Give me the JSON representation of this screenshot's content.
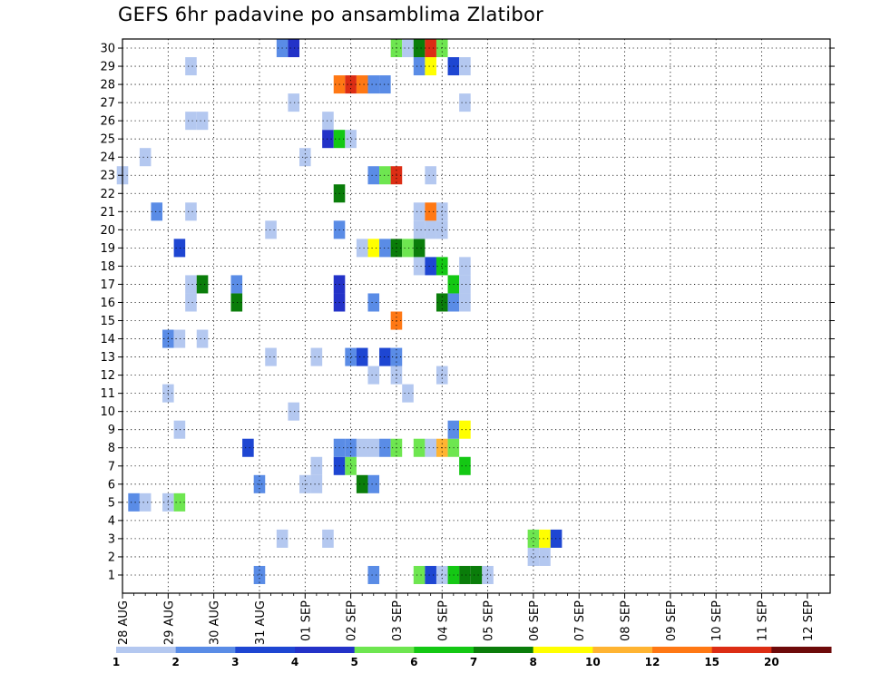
{
  "chart_data": {
    "type": "heatmap",
    "title": "GEFS 6hr padavine po ansamblima Zlatibor",
    "xlabel": "",
    "ylabel": "",
    "x_tick_labels": [
      "28 AUG",
      "29 AUG",
      "30 AUG",
      "31 AUG",
      "01 SEP",
      "02 SEP",
      "03 SEP",
      "04 SEP",
      "05 SEP",
      "06 SEP",
      "07 SEP",
      "08 SEP",
      "09 SEP",
      "10 SEP",
      "11 SEP",
      "12 SEP"
    ],
    "x_unit": "6-hour step",
    "y_tick_labels": [
      "1",
      "2",
      "3",
      "4",
      "5",
      "6",
      "7",
      "8",
      "9",
      "10",
      "11",
      "12",
      "13",
      "14",
      "15",
      "16",
      "17",
      "18",
      "19",
      "20",
      "21",
      "22",
      "23",
      "24",
      "25",
      "26",
      "27",
      "28",
      "29",
      "30"
    ],
    "ylim": [
      1,
      30
    ],
    "grid": true,
    "colorbar": {
      "labels": [
        "1",
        "2",
        "3",
        "4",
        "5",
        "6",
        "7",
        "8",
        "10",
        "12",
        "15",
        "20"
      ],
      "colors": [
        "#b4c8f0",
        "#5a8ce6",
        "#1e46d2",
        "#2332c8",
        "#6ee650",
        "#14c814",
        "#0a7d0a",
        "#ffff00",
        "#ffb432",
        "#ff7814",
        "#dc2d14",
        "#6e0a0a"
      ]
    },
    "cells": [
      {
        "m": 1,
        "t": 12,
        "c": 1
      },
      {
        "m": 1,
        "t": 22,
        "c": 1
      },
      {
        "m": 1,
        "t": 26,
        "c": 4
      },
      {
        "m": 1,
        "t": 27,
        "c": 2
      },
      {
        "m": 1,
        "t": 28,
        "c": 0
      },
      {
        "m": 1,
        "t": 29,
        "c": 5
      },
      {
        "m": 1,
        "t": 30,
        "c": 6
      },
      {
        "m": 1,
        "t": 31,
        "c": 6
      },
      {
        "m": 1,
        "t": 32,
        "c": 0
      },
      {
        "m": 2,
        "t": 36,
        "c": 0
      },
      {
        "m": 2,
        "t": 37,
        "c": 0
      },
      {
        "m": 3,
        "t": 14,
        "c": 0
      },
      {
        "m": 3,
        "t": 18,
        "c": 0
      },
      {
        "m": 3,
        "t": 36,
        "c": 4
      },
      {
        "m": 3,
        "t": 37,
        "c": 7
      },
      {
        "m": 3,
        "t": 38,
        "c": 2
      },
      {
        "m": 5,
        "t": 1,
        "c": 1
      },
      {
        "m": 5,
        "t": 2,
        "c": 0
      },
      {
        "m": 5,
        "t": 4,
        "c": 0
      },
      {
        "m": 5,
        "t": 5,
        "c": 4
      },
      {
        "m": 6,
        "t": 12,
        "c": 1
      },
      {
        "m": 6,
        "t": 16,
        "c": 0
      },
      {
        "m": 6,
        "t": 17,
        "c": 0
      },
      {
        "m": 6,
        "t": 21,
        "c": 6
      },
      {
        "m": 6,
        "t": 22,
        "c": 1
      },
      {
        "m": 7,
        "t": 17,
        "c": 0
      },
      {
        "m": 7,
        "t": 19,
        "c": 2
      },
      {
        "m": 7,
        "t": 20,
        "c": 4
      },
      {
        "m": 7,
        "t": 30,
        "c": 5
      },
      {
        "m": 8,
        "t": 11,
        "c": 2
      },
      {
        "m": 8,
        "t": 19,
        "c": 1
      },
      {
        "m": 8,
        "t": 20,
        "c": 1
      },
      {
        "m": 8,
        "t": 21,
        "c": 0
      },
      {
        "m": 8,
        "t": 22,
        "c": 0
      },
      {
        "m": 8,
        "t": 23,
        "c": 1
      },
      {
        "m": 8,
        "t": 24,
        "c": 4
      },
      {
        "m": 8,
        "t": 26,
        "c": 4
      },
      {
        "m": 8,
        "t": 27,
        "c": 0
      },
      {
        "m": 8,
        "t": 28,
        "c": 8
      },
      {
        "m": 8,
        "t": 29,
        "c": 4
      },
      {
        "m": 9,
        "t": 5,
        "c": 0
      },
      {
        "m": 9,
        "t": 29,
        "c": 1
      },
      {
        "m": 9,
        "t": 30,
        "c": 7
      },
      {
        "m": 10,
        "t": 15,
        "c": 0
      },
      {
        "m": 11,
        "t": 4,
        "c": 0
      },
      {
        "m": 11,
        "t": 25,
        "c": 0
      },
      {
        "m": 12,
        "t": 22,
        "c": 0
      },
      {
        "m": 12,
        "t": 24,
        "c": 0
      },
      {
        "m": 12,
        "t": 28,
        "c": 0
      },
      {
        "m": 13,
        "t": 13,
        "c": 0
      },
      {
        "m": 13,
        "t": 17,
        "c": 0
      },
      {
        "m": 13,
        "t": 20,
        "c": 1
      },
      {
        "m": 13,
        "t": 21,
        "c": 2
      },
      {
        "m": 13,
        "t": 23,
        "c": 2
      },
      {
        "m": 13,
        "t": 24,
        "c": 1
      },
      {
        "m": 14,
        "t": 4,
        "c": 1
      },
      {
        "m": 14,
        "t": 5,
        "c": 0
      },
      {
        "m": 14,
        "t": 7,
        "c": 0
      },
      {
        "m": 15,
        "t": 24,
        "c": 9
      },
      {
        "m": 16,
        "t": 6,
        "c": 0
      },
      {
        "m": 16,
        "t": 10,
        "c": 6
      },
      {
        "m": 16,
        "t": 19,
        "c": 3
      },
      {
        "m": 16,
        "t": 22,
        "c": 1
      },
      {
        "m": 16,
        "t": 28,
        "c": 6
      },
      {
        "m": 16,
        "t": 29,
        "c": 1
      },
      {
        "m": 16,
        "t": 30,
        "c": 0
      },
      {
        "m": 17,
        "t": 6,
        "c": 0
      },
      {
        "m": 17,
        "t": 7,
        "c": 6
      },
      {
        "m": 17,
        "t": 10,
        "c": 1
      },
      {
        "m": 17,
        "t": 19,
        "c": 3
      },
      {
        "m": 17,
        "t": 29,
        "c": 5
      },
      {
        "m": 17,
        "t": 30,
        "c": 0
      },
      {
        "m": 18,
        "t": 26,
        "c": 0
      },
      {
        "m": 18,
        "t": 27,
        "c": 2
      },
      {
        "m": 18,
        "t": 28,
        "c": 5
      },
      {
        "m": 18,
        "t": 30,
        "c": 0
      },
      {
        "m": 19,
        "t": 5,
        "c": 2
      },
      {
        "m": 19,
        "t": 21,
        "c": 0
      },
      {
        "m": 19,
        "t": 22,
        "c": 7
      },
      {
        "m": 19,
        "t": 23,
        "c": 1
      },
      {
        "m": 19,
        "t": 24,
        "c": 6
      },
      {
        "m": 19,
        "t": 25,
        "c": 4
      },
      {
        "m": 19,
        "t": 26,
        "c": 6
      },
      {
        "m": 20,
        "t": 13,
        "c": 0
      },
      {
        "m": 20,
        "t": 19,
        "c": 1
      },
      {
        "m": 20,
        "t": 26,
        "c": 0
      },
      {
        "m": 20,
        "t": 27,
        "c": 0
      },
      {
        "m": 20,
        "t": 28,
        "c": 0
      },
      {
        "m": 21,
        "t": 3,
        "c": 1
      },
      {
        "m": 21,
        "t": 6,
        "c": 0
      },
      {
        "m": 21,
        "t": 26,
        "c": 0
      },
      {
        "m": 21,
        "t": 27,
        "c": 9
      },
      {
        "m": 21,
        "t": 28,
        "c": 0
      },
      {
        "m": 22,
        "t": 19,
        "c": 6
      },
      {
        "m": 23,
        "t": 0,
        "c": 0
      },
      {
        "m": 23,
        "t": 22,
        "c": 1
      },
      {
        "m": 23,
        "t": 23,
        "c": 4
      },
      {
        "m": 23,
        "t": 24,
        "c": 10
      },
      {
        "m": 23,
        "t": 27,
        "c": 0
      },
      {
        "m": 24,
        "t": 2,
        "c": 0
      },
      {
        "m": 24,
        "t": 16,
        "c": 0
      },
      {
        "m": 25,
        "t": 18,
        "c": 3
      },
      {
        "m": 25,
        "t": 19,
        "c": 5
      },
      {
        "m": 25,
        "t": 20,
        "c": 0
      },
      {
        "m": 26,
        "t": 6,
        "c": 0
      },
      {
        "m": 26,
        "t": 7,
        "c": 0
      },
      {
        "m": 26,
        "t": 18,
        "c": 0
      },
      {
        "m": 27,
        "t": 15,
        "c": 0
      },
      {
        "m": 27,
        "t": 30,
        "c": 0
      },
      {
        "m": 28,
        "t": 19,
        "c": 9
      },
      {
        "m": 28,
        "t": 20,
        "c": 10
      },
      {
        "m": 28,
        "t": 21,
        "c": 9
      },
      {
        "m": 28,
        "t": 22,
        "c": 1
      },
      {
        "m": 28,
        "t": 23,
        "c": 1
      },
      {
        "m": 29,
        "t": 6,
        "c": 0
      },
      {
        "m": 29,
        "t": 26,
        "c": 1
      },
      {
        "m": 29,
        "t": 27,
        "c": 7
      },
      {
        "m": 29,
        "t": 29,
        "c": 2
      },
      {
        "m": 29,
        "t": 30,
        "c": 0
      },
      {
        "m": 30,
        "t": 14,
        "c": 1
      },
      {
        "m": 30,
        "t": 15,
        "c": 3
      },
      {
        "m": 30,
        "t": 24,
        "c": 4
      },
      {
        "m": 30,
        "t": 25,
        "c": 0
      },
      {
        "m": 30,
        "t": 26,
        "c": 6
      },
      {
        "m": 30,
        "t": 27,
        "c": 10
      },
      {
        "m": 30,
        "t": 28,
        "c": 4
      }
    ]
  }
}
